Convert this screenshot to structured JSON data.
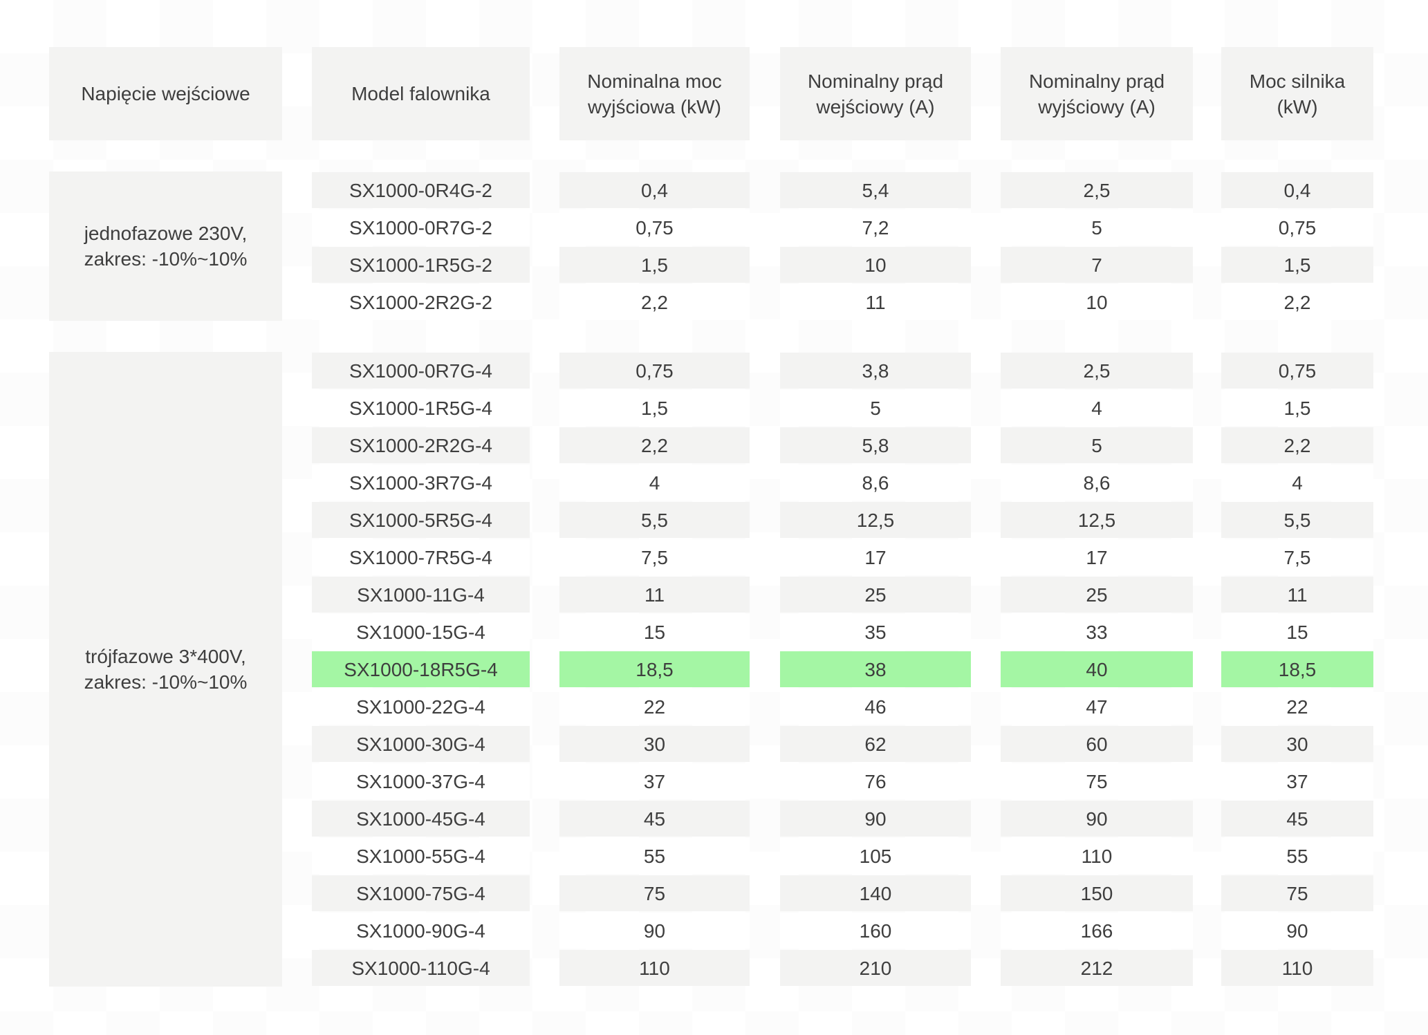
{
  "table": {
    "columns": [
      {
        "line1": "Napięcie wejściowe",
        "line2": ""
      },
      {
        "line1": "Model falownika",
        "line2": ""
      },
      {
        "line1": "Nominalna moc",
        "line2": "wyjściowa (kW)"
      },
      {
        "line1": "Nominalny prąd",
        "line2": "wejściowy (A)"
      },
      {
        "line1": "Nominalny prąd",
        "line2": "wyjściowy (A)"
      },
      {
        "line1": "Moc silnika",
        "line2": "(kW)"
      }
    ],
    "colors": {
      "cell_gray": "#f3f3f2",
      "highlight_green": "#a4f6a4",
      "text": "#3e3e3e",
      "checker": "#fcfcfc"
    },
    "groups": [
      {
        "voltage_line1": "jednofazowe 230V,",
        "voltage_line2": "zakres: -10%~10%",
        "rows": [
          {
            "cells": [
              "SX1000-0R4G-2",
              "0,4",
              "5,4",
              "2,5",
              "0,4"
            ],
            "highlight": false
          },
          {
            "cells": [
              "SX1000-0R7G-2",
              "0,75",
              "7,2",
              "5",
              "0,75"
            ],
            "highlight": false
          },
          {
            "cells": [
              "SX1000-1R5G-2",
              "1,5",
              "10",
              "7",
              "1,5"
            ],
            "highlight": false
          },
          {
            "cells": [
              "SX1000-2R2G-2",
              "2,2",
              "11",
              "10",
              "2,2"
            ],
            "highlight": false
          }
        ]
      },
      {
        "voltage_line1": "trójfazowe 3*400V,",
        "voltage_line2": "zakres: -10%~10%",
        "rows": [
          {
            "cells": [
              "SX1000-0R7G-4",
              "0,75",
              "3,8",
              "2,5",
              "0,75"
            ],
            "highlight": false
          },
          {
            "cells": [
              "SX1000-1R5G-4",
              "1,5",
              "5",
              "4",
              "1,5"
            ],
            "highlight": false
          },
          {
            "cells": [
              "SX1000-2R2G-4",
              "2,2",
              "5,8",
              "5",
              "2,2"
            ],
            "highlight": false
          },
          {
            "cells": [
              "SX1000-3R7G-4",
              "4",
              "8,6",
              "8,6",
              "4"
            ],
            "highlight": false
          },
          {
            "cells": [
              "SX1000-5R5G-4",
              "5,5",
              "12,5",
              "12,5",
              "5,5"
            ],
            "highlight": false
          },
          {
            "cells": [
              "SX1000-7R5G-4",
              "7,5",
              "17",
              "17",
              "7,5"
            ],
            "highlight": false
          },
          {
            "cells": [
              "SX1000-11G-4",
              "11",
              "25",
              "25",
              "11"
            ],
            "highlight": false
          },
          {
            "cells": [
              "SX1000-15G-4",
              "15",
              "35",
              "33",
              "15"
            ],
            "highlight": false
          },
          {
            "cells": [
              "SX1000-18R5G-4",
              "18,5",
              "38",
              "40",
              "18,5"
            ],
            "highlight": true
          },
          {
            "cells": [
              "SX1000-22G-4",
              "22",
              "46",
              "47",
              "22"
            ],
            "highlight": false
          },
          {
            "cells": [
              "SX1000-30G-4",
              "30",
              "62",
              "60",
              "30"
            ],
            "highlight": false
          },
          {
            "cells": [
              "SX1000-37G-4",
              "37",
              "76",
              "75",
              "37"
            ],
            "highlight": false
          },
          {
            "cells": [
              "SX1000-45G-4",
              "45",
              "90",
              "90",
              "45"
            ],
            "highlight": false
          },
          {
            "cells": [
              "SX1000-55G-4",
              "55",
              "105",
              "110",
              "55"
            ],
            "highlight": false
          },
          {
            "cells": [
              "SX1000-75G-4",
              "75",
              "140",
              "150",
              "75"
            ],
            "highlight": false
          },
          {
            "cells": [
              "SX1000-90G-4",
              "90",
              "160",
              "166",
              "90"
            ],
            "highlight": false
          },
          {
            "cells": [
              "SX1000-110G-4",
              "110",
              "210",
              "212",
              "110"
            ],
            "highlight": false
          }
        ]
      }
    ]
  }
}
